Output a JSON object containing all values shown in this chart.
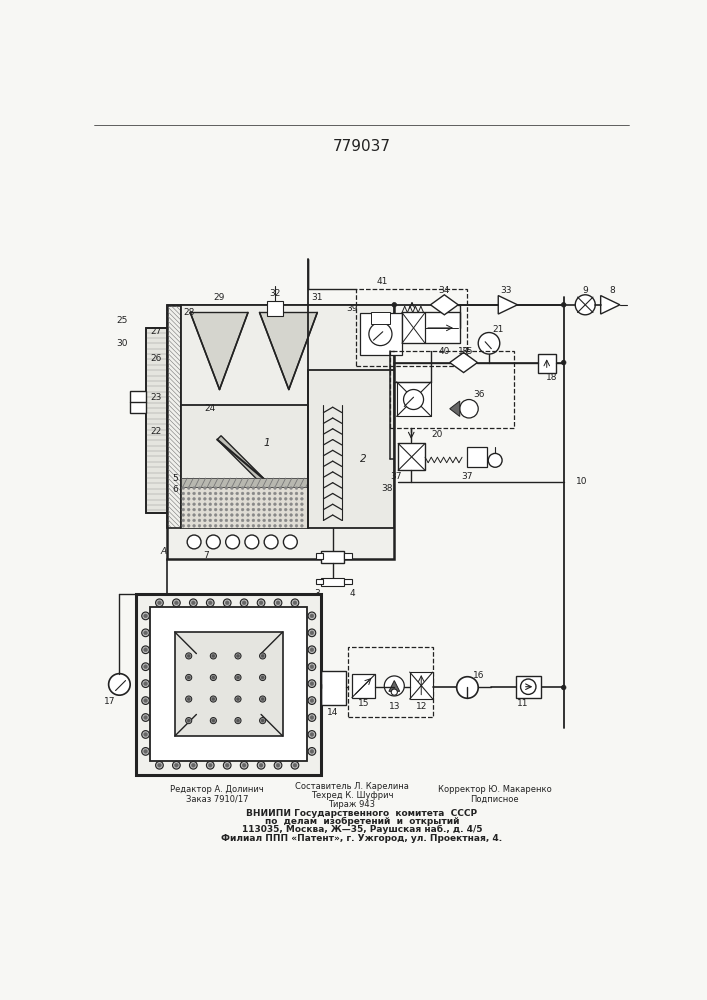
{
  "title": "779037",
  "bg_color": "#f7f7f4",
  "line_color": "#222222",
  "footer": {
    "r1c1": "Редактор А. Долинич",
    "r1c2": "Составитель Л. Карелина",
    "r1c2b": "Техред К. Шуфрич",
    "r1c3": "Корректор Ю. Макаренко",
    "r2c1": "Заказ 7910/17",
    "r2c2": "Тираж 943",
    "r2c3": "Подписное",
    "b1": "ВНИИПИ Государственного  комитета  СССР",
    "b2": "по  делам  изобретений  и  открытий",
    "b3": "113035, Москва, Ж—35, Раушская наб., д. 4/5",
    "b4": "Филиал ППП «Патент», г. Ужгород, ул. Проектная, 4."
  }
}
